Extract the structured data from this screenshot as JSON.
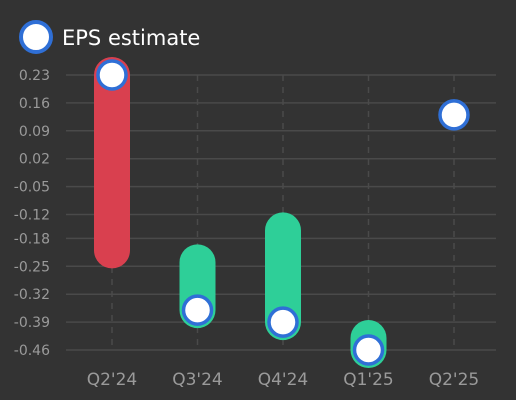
{
  "chart_data": {
    "type": "range-bar",
    "legend": {
      "label": "EPS estimate",
      "placement": "top-left"
    },
    "categories": [
      "Q2'24",
      "Q3'24",
      "Q4'24",
      "Q1'25",
      "Q2'25"
    ],
    "y_ticks": [
      "0.23",
      "0.16",
      "0.09",
      "0.02",
      "-0.05",
      "-0.12",
      "-0.18",
      "-0.25",
      "-0.32",
      "-0.39",
      "-0.46"
    ],
    "ylim": [
      -0.46,
      0.23
    ],
    "grid": true,
    "series": [
      {
        "name": "EPS estimate",
        "values": [
          0.23,
          -0.36,
          -0.39,
          -0.46,
          0.13
        ]
      }
    ],
    "ranges": [
      {
        "from": 0.23,
        "to": -0.21,
        "color": "#d9404f"
      },
      {
        "from": -0.36,
        "to": -0.24,
        "color": "#2ecf98"
      },
      {
        "from": -0.39,
        "to": -0.16,
        "color": "#2ecf98"
      },
      {
        "from": -0.46,
        "to": -0.43,
        "color": "#2ecf98"
      },
      null
    ],
    "colors": {
      "background": "#333333",
      "grid": "#4a4a4a",
      "marker_fill": "#ffffff",
      "marker_stroke": "#2f6fd6",
      "tick_text": "#9a9a9a",
      "legend_text": "#ffffff",
      "miss": "#d9404f",
      "beat": "#2ecf98"
    }
  }
}
